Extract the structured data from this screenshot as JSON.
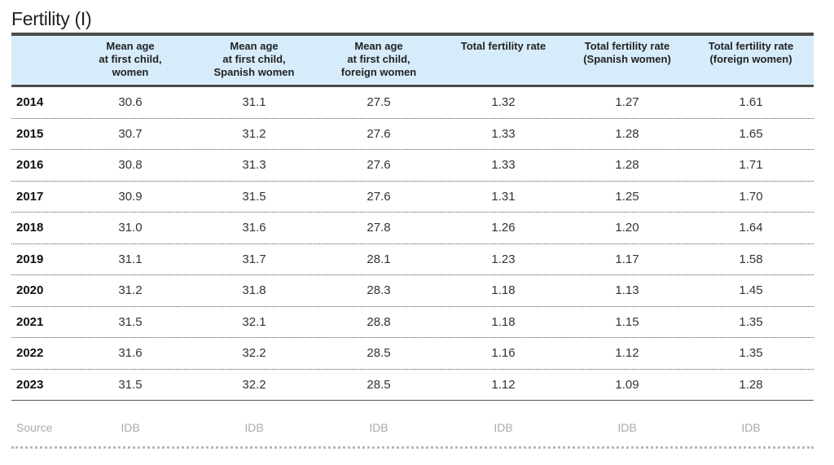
{
  "title": "Fertility (I)",
  "columns": [
    {
      "lines": [
        "Mean age",
        "at first child,",
        "women"
      ]
    },
    {
      "lines": [
        "Mean age",
        "at first child,",
        "Spanish women"
      ]
    },
    {
      "lines": [
        "Mean age",
        "at first child,",
        "foreign women"
      ]
    },
    {
      "lines": [
        "Total fertility rate"
      ]
    },
    {
      "lines": [
        "Total fertility rate",
        "(Spanish women)"
      ]
    },
    {
      "lines": [
        "Total fertility rate",
        "(foreign women)"
      ]
    }
  ],
  "rows": [
    {
      "year": "2014",
      "values": [
        "30.6",
        "31.1",
        "27.5",
        "1.32",
        "1.27",
        "1.61"
      ]
    },
    {
      "year": "2015",
      "values": [
        "30.7",
        "31.2",
        "27.6",
        "1.33",
        "1.28",
        "1.65"
      ]
    },
    {
      "year": "2016",
      "values": [
        "30.8",
        "31.3",
        "27.6",
        "1.33",
        "1.28",
        "1.71"
      ]
    },
    {
      "year": "2017",
      "values": [
        "30.9",
        "31.5",
        "27.6",
        "1.31",
        "1.25",
        "1.70"
      ]
    },
    {
      "year": "2018",
      "values": [
        "31.0",
        "31.6",
        "27.8",
        "1.26",
        "1.20",
        "1.64"
      ]
    },
    {
      "year": "2019",
      "values": [
        "31.1",
        "31.7",
        "28.1",
        "1.23",
        "1.17",
        "1.58"
      ]
    },
    {
      "year": "2020",
      "values": [
        "31.2",
        "31.8",
        "28.3",
        "1.18",
        "1.13",
        "1.45"
      ]
    },
    {
      "year": "2021",
      "values": [
        "31.5",
        "32.1",
        "28.8",
        "1.18",
        "1.15",
        "1.35"
      ]
    },
    {
      "year": "2022",
      "values": [
        "31.6",
        "32.2",
        "28.5",
        "1.16",
        "1.12",
        "1.35"
      ]
    },
    {
      "year": "2023",
      "values": [
        "31.5",
        "32.2",
        "28.5",
        "1.12",
        "1.09",
        "1.28"
      ]
    }
  ],
  "source": {
    "label": "Source",
    "values": [
      "IDB",
      "IDB",
      "IDB",
      "IDB",
      "IDB",
      "IDB"
    ]
  },
  "colors": {
    "header_bg": "#d7ecfb",
    "rule": "#4a4a4a",
    "source_text": "#aaaaaa"
  }
}
